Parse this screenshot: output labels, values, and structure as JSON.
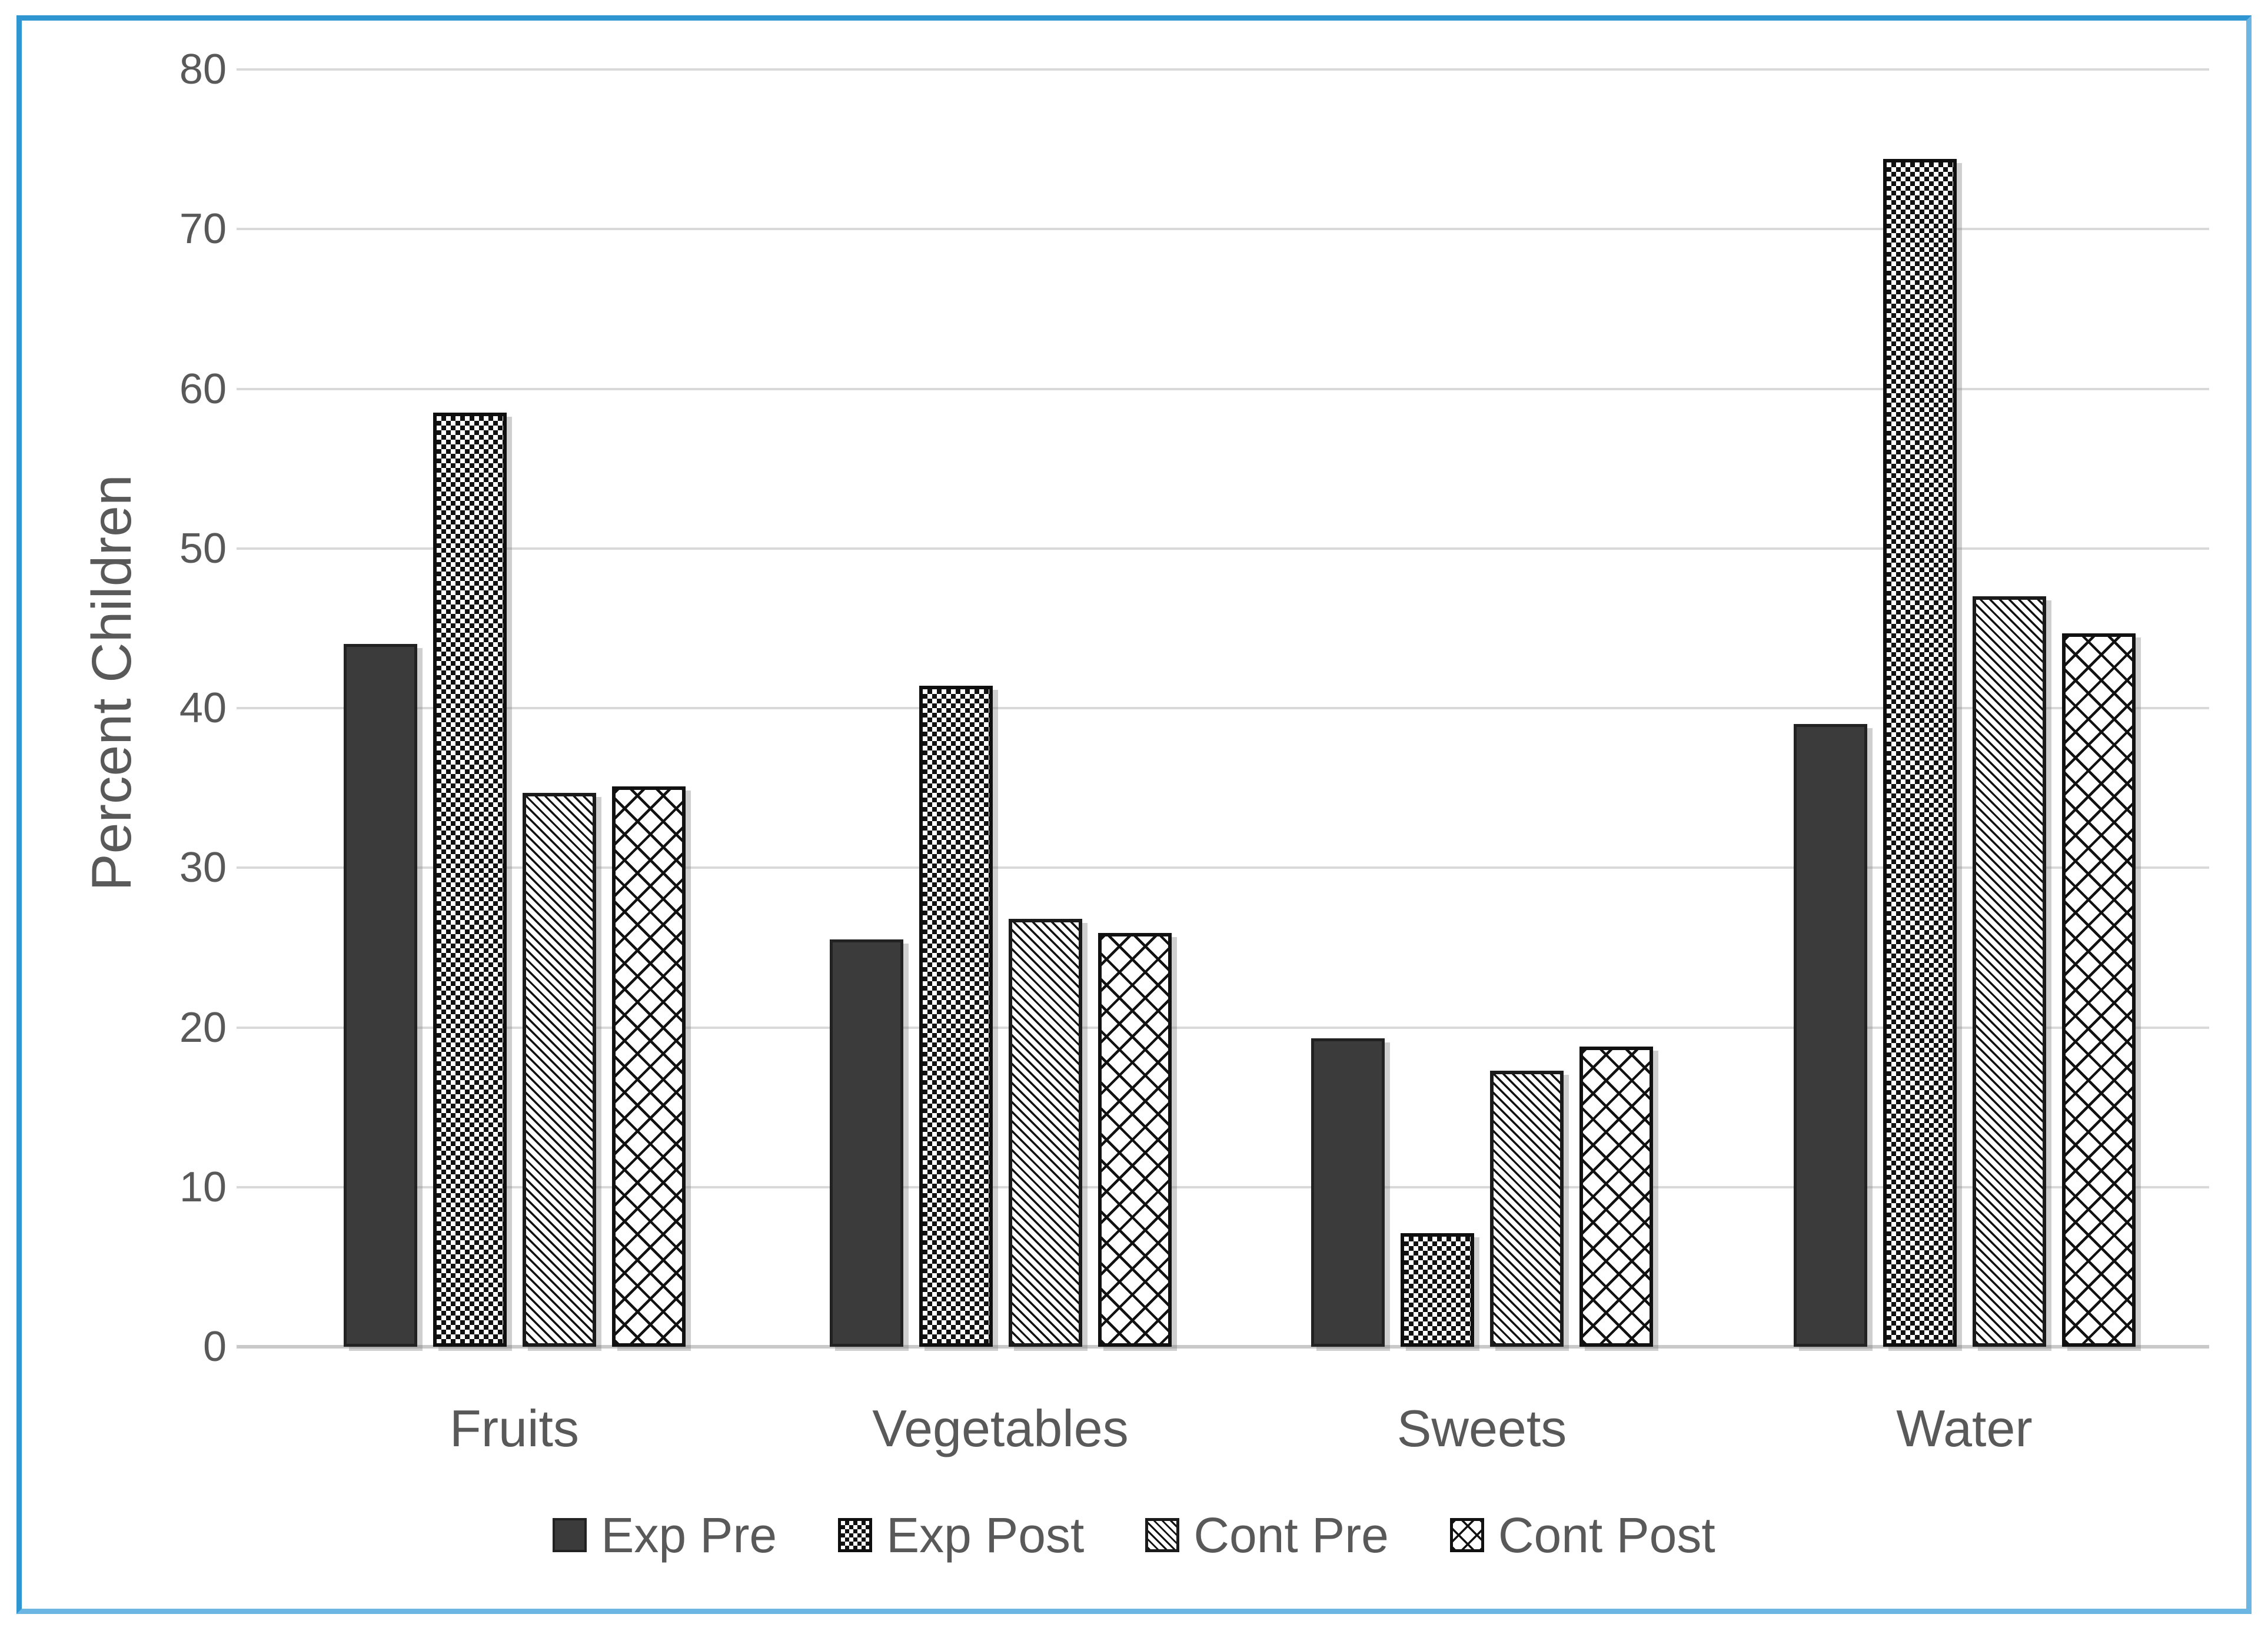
{
  "colors": {
    "frame_border": "#2f96d2",
    "bar_solid": "#3b3b3b",
    "pattern_ink": "#111111",
    "text": "#595959",
    "gridline": "#d9d9d9"
  },
  "chart_data": {
    "type": "bar",
    "title": "",
    "xlabel": "",
    "ylabel": "Percent Children",
    "categories": [
      "Fruits",
      "Vegetables",
      "Sweets",
      "Water"
    ],
    "series": [
      {
        "name": "Exp Pre",
        "swatch": "solid",
        "values": [
          44.0,
          25.5,
          19.3,
          39.0
        ]
      },
      {
        "name": "Exp Post",
        "swatch": "checkerboard",
        "values": [
          58.5,
          41.4,
          7.1,
          74.4
        ]
      },
      {
        "name": "Cont Pre",
        "swatch": "diagonal-stripes",
        "values": [
          34.7,
          26.8,
          17.3,
          47.0
        ]
      },
      {
        "name": "Cont Post",
        "swatch": "diamond-grid",
        "values": [
          35.1,
          25.9,
          18.8,
          44.7
        ]
      }
    ],
    "ylim": [
      0,
      80
    ],
    "yticks": [
      0,
      10,
      20,
      30,
      40,
      50,
      60,
      70,
      80
    ],
    "grid": true,
    "legend_position": "bottom"
  }
}
